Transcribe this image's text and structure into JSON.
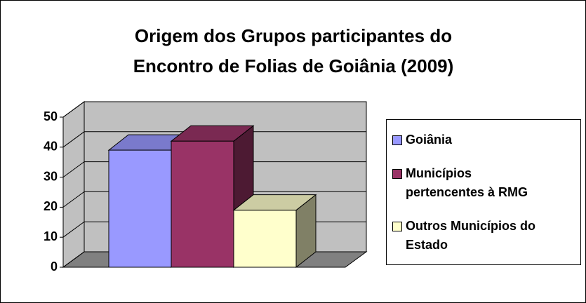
{
  "chart_data": {
    "type": "bar3d",
    "title": "Origem dos Grupos participantes do Encontro de Folias de Goiânia (2009)",
    "categories": [
      null
    ],
    "series": [
      {
        "name": "Goiânia",
        "color": "#9999ff",
        "values": [
          39
        ]
      },
      {
        "name": "Municípios pertencentes à RMG",
        "color": "#993366",
        "values": [
          42
        ]
      },
      {
        "name": "Outros Municípios do Estado",
        "color": "#ffffcc",
        "values": [
          19
        ]
      }
    ],
    "ylim": [
      0,
      50
    ],
    "yticks": [
      0,
      10,
      20,
      30,
      40,
      50
    ],
    "grid": true,
    "legend": "right"
  }
}
